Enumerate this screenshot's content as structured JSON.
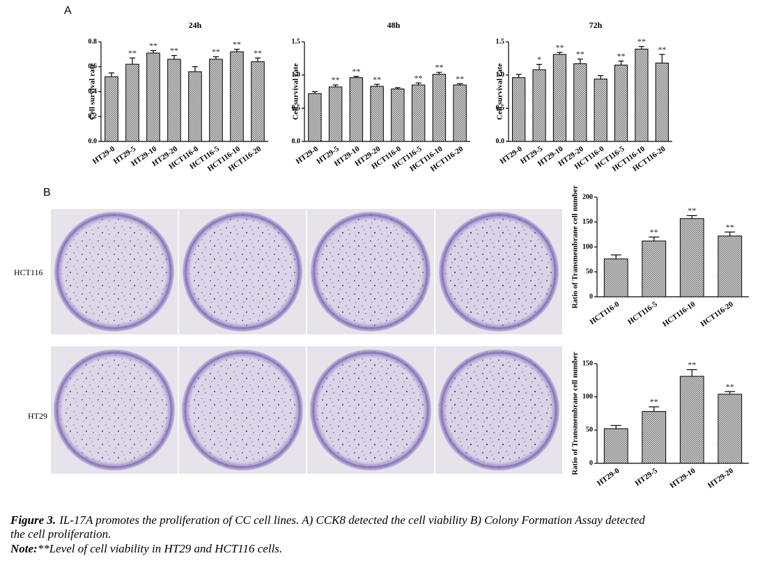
{
  "panel_labels": [
    "A",
    "B"
  ],
  "row_labels": [
    "HCT116",
    "HT29"
  ],
  "caption": {
    "label": "Figure 3.",
    "text": [
      "IL-17A promotes the proliferation of CC cell lines. A) CCK8 detected the cell viability  B) Colony Formation Assay detected",
      "the cell proliferation."
    ]
  },
  "note": {
    "label": "Note:",
    "text": "**Level of cell viability in HT29 and HCT116 cells."
  },
  "chart_data": [
    {
      "type": "bar",
      "title": "24h",
      "y_label": "Cell survival rate",
      "color": "#6e6e6e",
      "categories": [
        "HT29-0",
        "HT29-5",
        "HT29-10",
        "HT29-20",
        "HCT116-0",
        "HCT116-5",
        "HCT116-10",
        "HCT116-20"
      ],
      "values": [
        0.52,
        0.62,
        0.71,
        0.66,
        0.56,
        0.66,
        0.72,
        0.64
      ],
      "errors": [
        0.03,
        0.05,
        0.02,
        0.03,
        0.04,
        0.02,
        0.02,
        0.03
      ],
      "annotations": [
        null,
        "**",
        "**",
        "**",
        null,
        "**",
        "**",
        "**"
      ],
      "ylim": [
        0,
        0.8
      ],
      "yticks": [
        {
          "value": 0,
          "label": "0.0"
        },
        0.2,
        0.4,
        0.6,
        0.8
      ]
    },
    {
      "type": "bar",
      "title": "48h",
      "y_label": "Cell survival rate",
      "color": "#6e6e6e",
      "categories": [
        "HT29-0",
        "HT29-5",
        "HT29-10",
        "HT29-20",
        "HCT116-0",
        "HCT116-5",
        "HCT116-10",
        "HCT116-20"
      ],
      "values": [
        0.72,
        0.82,
        0.96,
        0.83,
        0.79,
        0.85,
        1.01,
        0.85
      ],
      "errors": [
        0.03,
        0.03,
        0.02,
        0.03,
        0.02,
        0.03,
        0.03,
        0.02
      ],
      "annotations": [
        null,
        "**",
        "**",
        "**",
        null,
        "**",
        "**",
        "**"
      ],
      "ylim": [
        0,
        1.5
      ],
      "yticks": [
        {
          "value": 0,
          "label": "0.0"
        },
        0.5,
        {
          "value": 1,
          "label": "1.0"
        },
        1.5
      ]
    },
    {
      "type": "bar",
      "title": "72h",
      "y_label": "Cell survival rate",
      "color": "#6e6e6e",
      "categories": [
        "HT29-0",
        "HT29-5",
        "HT29-10",
        "HT29-20",
        "HCT116-0",
        "HCT116-5",
        "HCT116-10",
        "HCT116-20"
      ],
      "values": [
        0.96,
        1.08,
        1.31,
        1.17,
        0.94,
        1.15,
        1.39,
        1.18
      ],
      "errors": [
        0.05,
        0.08,
        0.03,
        0.07,
        0.05,
        0.06,
        0.04,
        0.13
      ],
      "annotations": [
        null,
        "*",
        "**",
        "**",
        null,
        "**",
        "**",
        "**"
      ],
      "ylim": [
        0,
        1.5
      ],
      "yticks": [
        {
          "value": 0,
          "label": "0.0"
        },
        0.5,
        {
          "value": 1,
          "label": "1.0"
        },
        1.5
      ]
    },
    {
      "type": "bar",
      "y_label": "Ratio of Transmembrane cell number",
      "color": "#6e6e6e",
      "categories": [
        "HCT116-0",
        "HCT116-5",
        "HCT116-10",
        "HCT116-20"
      ],
      "values": [
        76,
        112,
        157,
        122
      ],
      "errors": [
        8,
        8,
        6,
        8
      ],
      "annotations": [
        null,
        "**",
        "**",
        "**"
      ],
      "ylim": [
        0,
        200
      ],
      "yticks": [
        0,
        50,
        100,
        150,
        200
      ]
    },
    {
      "type": "bar",
      "y_label": "Ratio of Transmembrane cell number",
      "color": "#6e6e6e",
      "categories": [
        "HT29-0",
        "HT29-5",
        "HT29-10",
        "HT29-20"
      ],
      "values": [
        52,
        78,
        131,
        104
      ],
      "errors": [
        5,
        7,
        10,
        4
      ],
      "annotations": [
        null,
        "**",
        "**",
        "**"
      ],
      "ylim": [
        0,
        150
      ],
      "yticks": [
        0,
        50,
        100,
        150
      ]
    }
  ]
}
